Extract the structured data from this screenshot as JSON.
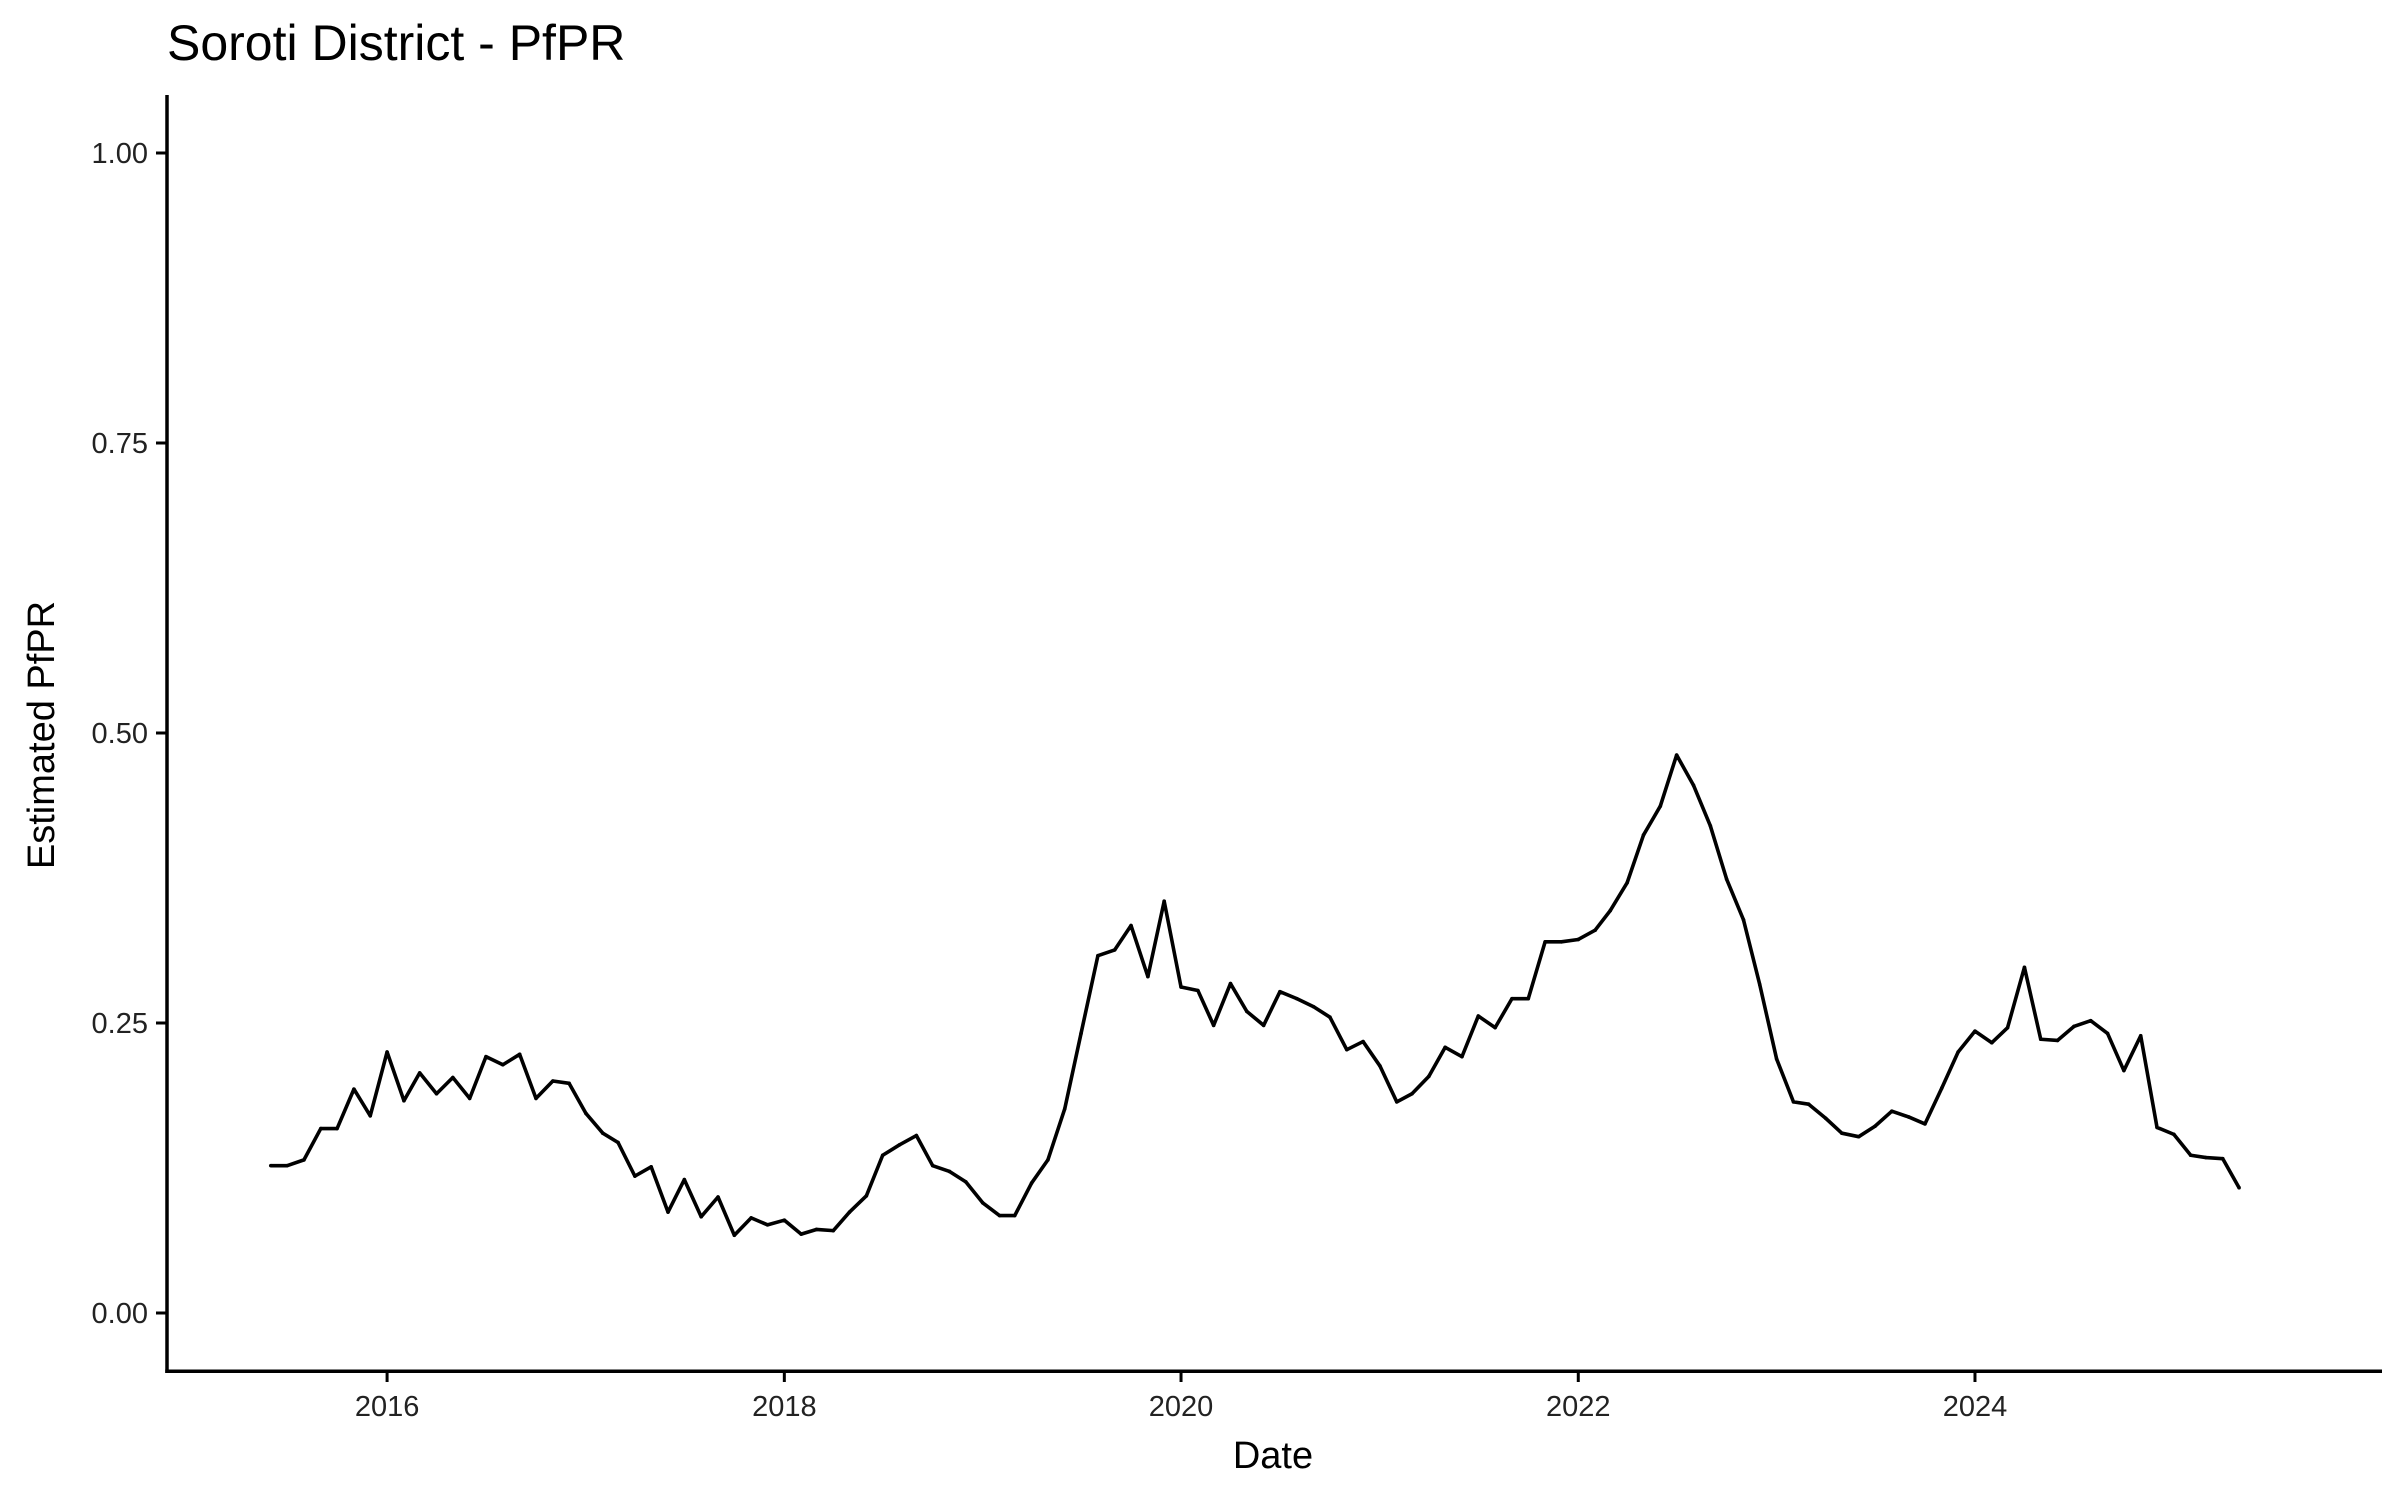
{
  "chart_data": {
    "type": "line",
    "title": "Soroti District - PfPR",
    "xlabel": "Date",
    "ylabel": "Estimated PfPR",
    "xlim": [
      "2014-11-22",
      "2026-01-19"
    ],
    "ylim": [
      -0.05,
      1.05
    ],
    "x_ticks": [
      "2016",
      "2018",
      "2020",
      "2022",
      "2024"
    ],
    "y_ticks": [
      "0.00",
      "0.25",
      "0.50",
      "0.75",
      "1.00"
    ],
    "grid": false,
    "legend": "none",
    "line_color": "#000000",
    "series": [
      {
        "x": [
          "2015-06",
          "2015-07",
          "2015-08",
          "2015-09",
          "2015-10",
          "2015-11",
          "2015-12",
          "2016-01",
          "2016-02",
          "2016-03",
          "2016-04",
          "2016-05",
          "2016-06",
          "2016-07",
          "2016-08",
          "2016-09",
          "2016-10",
          "2016-11",
          "2016-12",
          "2017-01",
          "2017-02",
          "2017-03",
          "2017-04",
          "2017-05",
          "2017-06",
          "2017-07",
          "2017-08",
          "2017-09",
          "2017-10",
          "2017-11",
          "2017-12",
          "2018-01",
          "2018-02",
          "2018-03",
          "2018-04",
          "2018-05",
          "2018-06",
          "2018-07",
          "2018-08",
          "2018-09",
          "2018-10",
          "2018-11",
          "2018-12",
          "2019-01",
          "2019-02",
          "2019-03",
          "2019-04",
          "2019-05",
          "2019-06",
          "2019-07",
          "2019-08",
          "2019-09",
          "2019-10",
          "2019-11",
          "2019-12",
          "2020-01",
          "2020-02",
          "2020-03",
          "2020-04",
          "2020-05",
          "2020-06",
          "2020-07",
          "2020-08",
          "2020-09",
          "2020-10",
          "2020-11",
          "2020-12",
          "2021-01",
          "2021-02",
          "2021-03",
          "2021-04",
          "2021-05",
          "2021-06",
          "2021-07",
          "2021-08",
          "2021-09",
          "2021-10",
          "2021-11",
          "2021-12",
          "2022-01",
          "2022-02",
          "2022-03",
          "2022-04",
          "2022-05",
          "2022-06",
          "2022-07",
          "2022-08",
          "2022-09",
          "2022-10",
          "2022-11",
          "2022-12",
          "2023-01",
          "2023-02",
          "2023-03",
          "2023-04",
          "2023-05",
          "2023-06",
          "2023-07",
          "2023-08",
          "2023-09",
          "2023-10",
          "2023-11",
          "2023-12",
          "2024-01",
          "2024-02",
          "2024-03",
          "2024-04",
          "2024-05",
          "2024-06",
          "2024-07",
          "2024-08",
          "2024-09",
          "2024-10",
          "2024-11",
          "2024-12",
          "2025-01",
          "2025-02",
          "2025-03",
          "2025-04",
          "2025-05"
        ],
        "y": [
          0.127,
          0.127,
          0.132,
          0.159,
          0.159,
          0.193,
          0.17,
          0.225,
          0.183,
          0.207,
          0.189,
          0.203,
          0.185,
          0.221,
          0.214,
          0.223,
          0.185,
          0.2,
          0.198,
          0.172,
          0.155,
          0.147,
          0.118,
          0.126,
          0.087,
          0.115,
          0.083,
          0.1,
          0.067,
          0.082,
          0.076,
          0.08,
          0.068,
          0.072,
          0.071,
          0.087,
          0.101,
          0.136,
          0.145,
          0.153,
          0.127,
          0.122,
          0.113,
          0.095,
          0.084,
          0.084,
          0.112,
          0.132,
          0.176,
          0.241,
          0.308,
          0.313,
          0.334,
          0.29,
          0.355,
          0.281,
          0.278,
          0.248,
          0.284,
          0.26,
          0.248,
          0.277,
          0.271,
          0.264,
          0.255,
          0.227,
          0.234,
          0.213,
          0.182,
          0.189,
          0.204,
          0.229,
          0.221,
          0.256,
          0.246,
          0.271,
          0.271,
          0.32,
          0.32,
          0.322,
          0.33,
          0.347,
          0.371,
          0.412,
          0.437,
          0.481,
          0.455,
          0.42,
          0.374,
          0.339,
          0.283,
          0.219,
          0.182,
          0.18,
          0.168,
          0.155,
          0.152,
          0.161,
          0.174,
          0.169,
          0.163,
          0.194,
          0.225,
          0.243,
          0.233,
          0.246,
          0.298,
          0.236,
          0.235,
          0.247,
          0.252,
          0.241,
          0.209,
          0.239,
          0.16,
          0.154,
          0.136,
          0.134,
          0.133,
          0.108
        ]
      }
    ]
  }
}
